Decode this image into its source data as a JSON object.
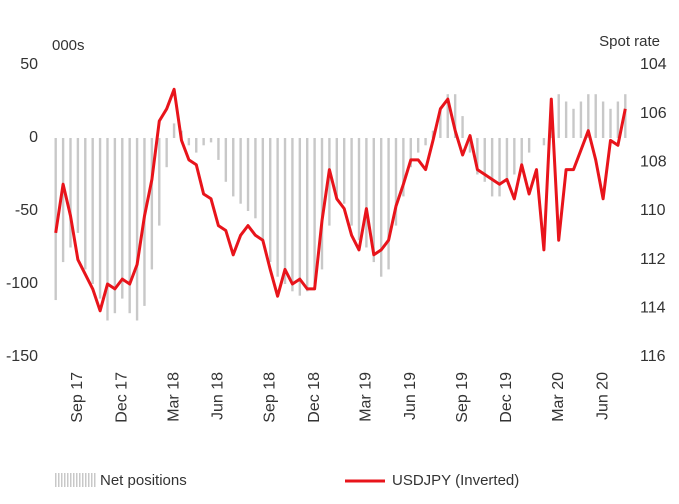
{
  "chart_data": {
    "type": "bar-line",
    "ylabel": "000s",
    "y2label": "Spot rate",
    "categories": [
      null,
      null,
      null,
      "Sep 17",
      null,
      null,
      null,
      null,
      null,
      "Dec 17",
      null,
      null,
      null,
      null,
      null,
      null,
      "Mar 18",
      null,
      null,
      null,
      null,
      null,
      "Jun 18",
      null,
      null,
      null,
      null,
      null,
      null,
      "Sep 18",
      null,
      null,
      null,
      null,
      null,
      "Dec 18",
      null,
      null,
      null,
      null,
      null,
      null,
      "Mar 19",
      null,
      null,
      null,
      null,
      null,
      "Jun 19",
      null,
      null,
      null,
      null,
      null,
      null,
      "Sep 19",
      null,
      null,
      null,
      null,
      null,
      "Dec 19",
      null,
      null,
      null,
      null,
      null,
      null,
      "Mar 20",
      null,
      null,
      null,
      null,
      null,
      "Jun 20",
      null,
      null,
      null
    ],
    "series": [
      {
        "name": "Net positions",
        "type": "bar",
        "color": "#c8c8c8",
        "values": [
          -111,
          -85,
          -75,
          -65,
          -90,
          -100,
          -110,
          -125,
          -120,
          -110,
          -120,
          -125,
          -115,
          -90,
          -60,
          -20,
          10,
          5,
          -5,
          -10,
          -5,
          -3,
          -15,
          -30,
          -40,
          -45,
          -50,
          -55,
          -70,
          -85,
          -95,
          -100,
          -105,
          -108,
          -105,
          -100,
          -90,
          -60,
          -40,
          -45,
          -60,
          -70,
          -75,
          -85,
          -95,
          -90,
          -60,
          -40,
          -20,
          -10,
          -5,
          5,
          20,
          30,
          30,
          15,
          -10,
          -25,
          -30,
          -40,
          -40,
          -30,
          -25,
          -20,
          -10,
          0,
          -5,
          20,
          30,
          25,
          20,
          25,
          30,
          30,
          25,
          20,
          25,
          30
        ]
      },
      {
        "name": "USDJPY (Inverted)",
        "type": "line",
        "axis": "y2",
        "color": "#e8141b",
        "values": [
          110.9,
          108.9,
          110.2,
          112.0,
          112.6,
          113.2,
          114.1,
          113.0,
          113.2,
          112.8,
          113.0,
          112.2,
          110.2,
          108.7,
          106.3,
          105.8,
          105.0,
          107.1,
          107.9,
          108.1,
          109.3,
          109.5,
          110.6,
          110.8,
          111.8,
          111.0,
          110.6,
          111.0,
          111.2,
          112.4,
          113.5,
          112.4,
          113.0,
          112.8,
          113.2,
          113.2,
          110.4,
          108.3,
          109.5,
          109.9,
          111.0,
          111.6,
          109.9,
          111.8,
          111.6,
          111.2,
          109.8,
          108.9,
          107.9,
          107.9,
          108.3,
          107.1,
          105.8,
          105.4,
          106.7,
          107.7,
          106.9,
          108.3,
          108.5,
          108.7,
          108.9,
          108.7,
          109.5,
          108.1,
          109.3,
          108.3,
          111.6,
          105.4,
          111.2,
          108.3,
          108.3,
          107.5,
          106.7,
          107.9,
          109.5,
          107.1,
          107.3,
          105.8
        ]
      }
    ],
    "ylim": [
      -150,
      50
    ],
    "yticks": [
      -150,
      -100,
      -50,
      0,
      50
    ],
    "y2lim": [
      116,
      104
    ],
    "y2ticks": [
      104,
      106,
      108,
      110,
      112,
      114,
      116
    ],
    "grid": false,
    "legend": "bottom"
  }
}
